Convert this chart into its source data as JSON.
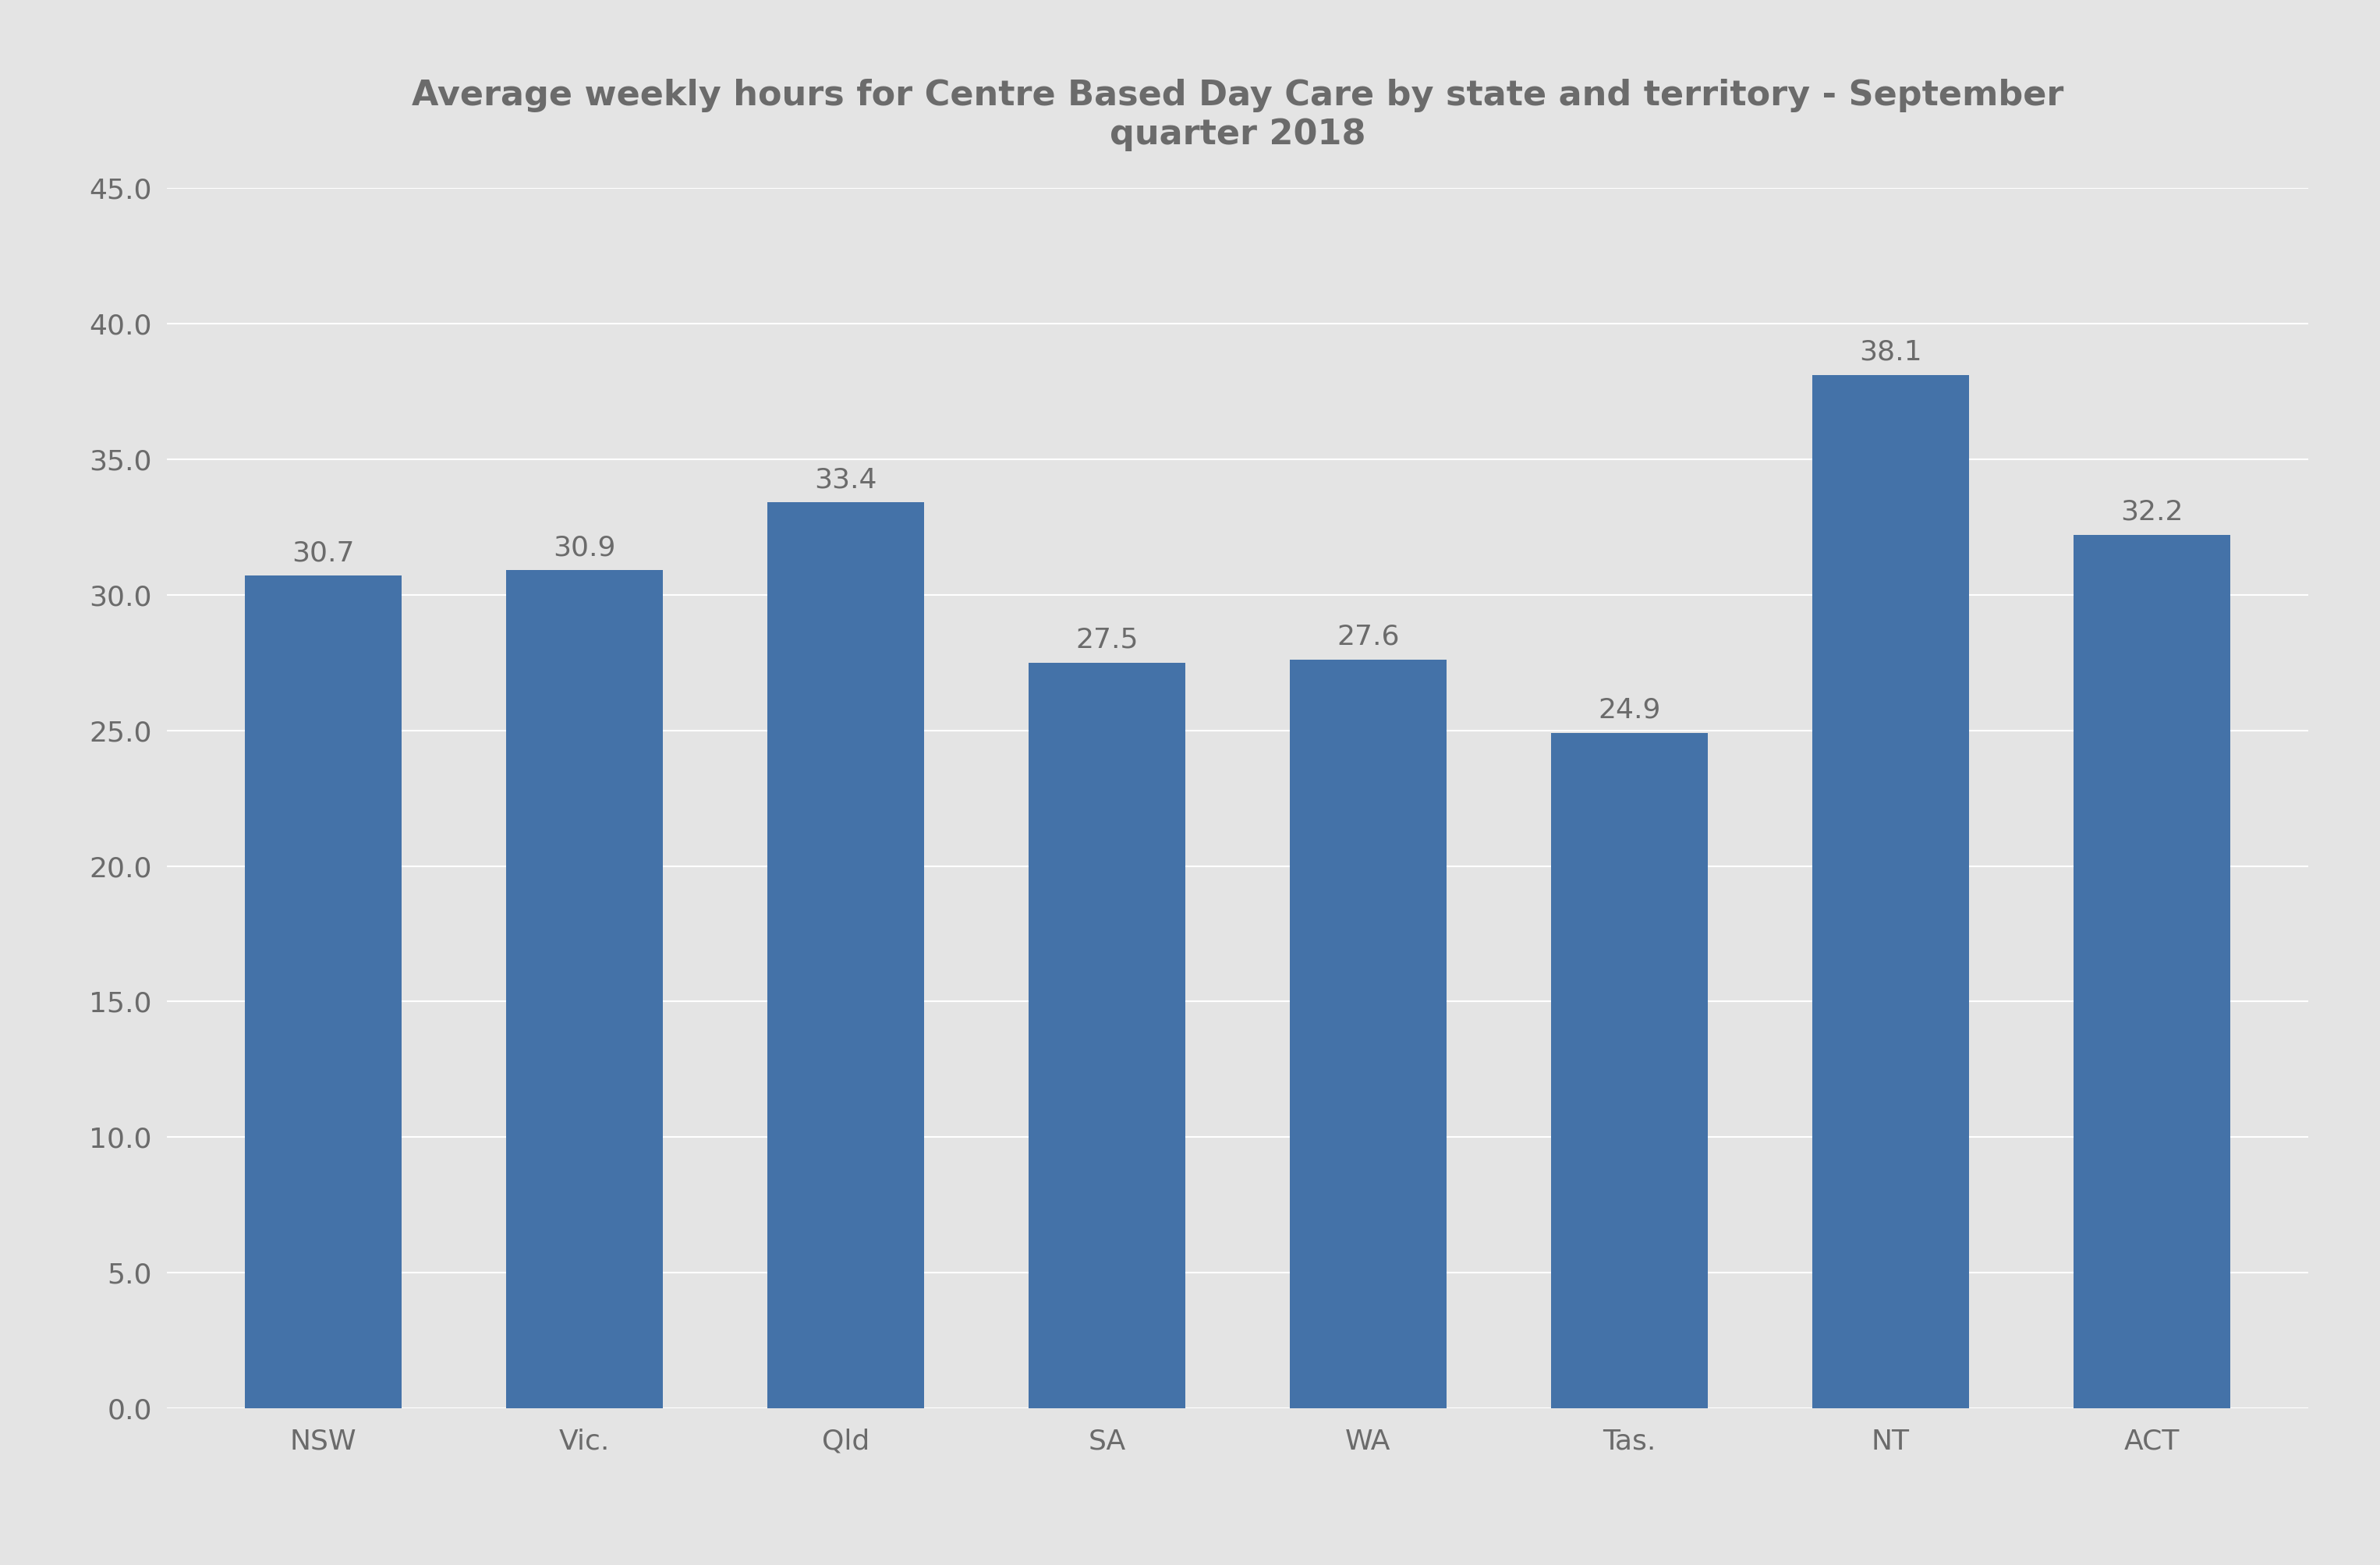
{
  "title": "Average weekly hours for Centre Based Day Care by state and territory - September\nquarter 2018",
  "categories": [
    "NSW",
    "Vic.",
    "Qld",
    "SA",
    "WA",
    "Tas.",
    "NT",
    "ACT"
  ],
  "values": [
    30.7,
    30.9,
    33.4,
    27.5,
    27.6,
    24.9,
    38.1,
    32.2
  ],
  "bar_color": "#4472a8",
  "background_color": "#E4E4E4",
  "grid_color": "#FFFFFF",
  "text_color": "#6B6B6B",
  "ylim": [
    0,
    45
  ],
  "yticks": [
    0.0,
    5.0,
    10.0,
    15.0,
    20.0,
    25.0,
    30.0,
    35.0,
    40.0,
    45.0
  ],
  "title_fontsize": 32,
  "tick_fontsize": 26,
  "label_fontsize": 26,
  "bar_width": 0.6
}
